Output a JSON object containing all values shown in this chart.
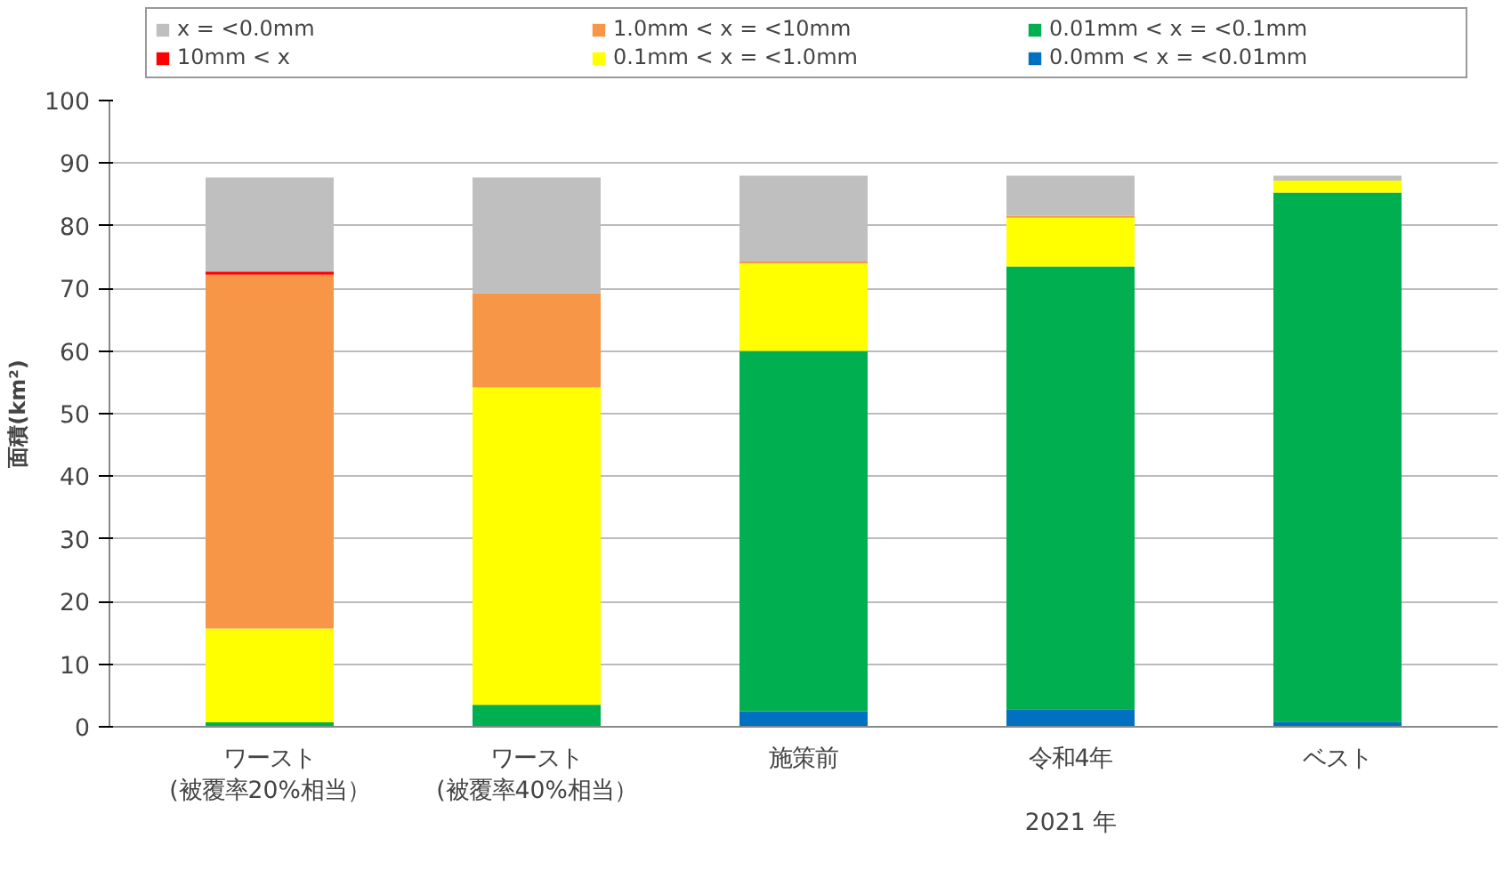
{
  "chart_data": {
    "type": "bar",
    "stacked": true,
    "ylabel": "面積(km²)",
    "categories": [
      "ワースト\n(被覆率20%相当）",
      "ワースト\n(被覆率40%相当）",
      "施策前",
      "令和4年\n\n2021 年",
      "ベスト"
    ],
    "series": [
      {
        "name": "0.0mm < x = <0.01mm",
        "color": "#0070c0",
        "values": [
          null,
          null,
          2.5,
          2.8,
          0.8
        ]
      },
      {
        "name": "0.01mm < x = <0.1mm",
        "color": "#00b050",
        "values": [
          0.7,
          3.5,
          57.5,
          70.7,
          84.5
        ]
      },
      {
        "name": "0.1mm < x = <1.0mm",
        "color": "#ffff00",
        "values": [
          15,
          50.7,
          14,
          7.8,
          1.9
        ]
      },
      {
        "name": "1.0mm < x = <10mm",
        "color": "#f79646",
        "values": [
          56.5,
          15,
          0.3,
          0.3,
          0
        ]
      },
      {
        "name": "10mm < x",
        "color": "#ff0000",
        "values": [
          0.5,
          0,
          0,
          0,
          0
        ]
      },
      {
        "name": "x = <0.0mm",
        "color": "#bfbfbf",
        "values": [
          15,
          18.5,
          13.7,
          6.4,
          0.8
        ]
      }
    ],
    "ylim": [
      0,
      100
    ],
    "yticks": [
      0,
      10,
      20,
      30,
      40,
      50,
      60,
      70,
      80,
      90,
      100
    ],
    "grid": "y",
    "legend": "top"
  }
}
